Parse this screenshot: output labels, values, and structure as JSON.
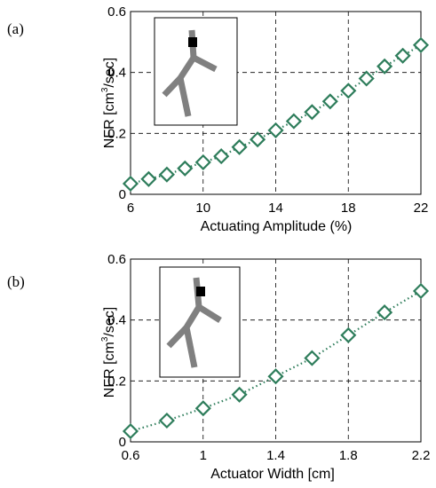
{
  "colors": {
    "series": "#2e7d5b",
    "branch": "#808080"
  },
  "chart_data": [
    {
      "type": "line",
      "panel_label": "(a)",
      "xlabel": "Actuating Amplitude (%)",
      "ylabel_main": "NFR [cm",
      "ylabel_sup": "3",
      "ylabel_tail": "/sec]",
      "xlim": [
        6,
        22
      ],
      "ylim": [
        0,
        0.6
      ],
      "xticks": [
        "6",
        "10",
        "14",
        "18",
        "22"
      ],
      "yticks": [
        "0",
        "0.2",
        "0.4",
        "0.6"
      ],
      "grid": true,
      "marker": "diamond",
      "x": [
        6,
        7,
        8,
        9,
        10,
        11,
        12,
        13,
        14,
        15,
        16,
        17,
        18,
        19,
        20,
        21,
        22
      ],
      "y": [
        0.035,
        0.05,
        0.065,
        0.085,
        0.105,
        0.125,
        0.155,
        0.18,
        0.21,
        0.24,
        0.27,
        0.305,
        0.34,
        0.38,
        0.42,
        0.455,
        0.49
      ]
    },
    {
      "type": "line",
      "panel_label": "(b)",
      "xlabel": "Actuator Width [cm]",
      "ylabel_main": "NFR [cm",
      "ylabel_sup": "3",
      "ylabel_tail": "/sec]",
      "xlim": [
        0.6,
        2.2
      ],
      "ylim": [
        0,
        0.6
      ],
      "xticks": [
        "0.6",
        "1",
        "1.4",
        "1.8",
        "2.2"
      ],
      "yticks": [
        "0",
        "0.2",
        "0.4",
        "0.6"
      ],
      "grid": true,
      "marker": "diamond",
      "x": [
        0.6,
        0.8,
        1.0,
        1.2,
        1.4,
        1.6,
        1.8,
        2.0,
        2.2
      ],
      "y": [
        0.035,
        0.07,
        0.11,
        0.155,
        0.215,
        0.275,
        0.35,
        0.425,
        0.495
      ]
    }
  ]
}
